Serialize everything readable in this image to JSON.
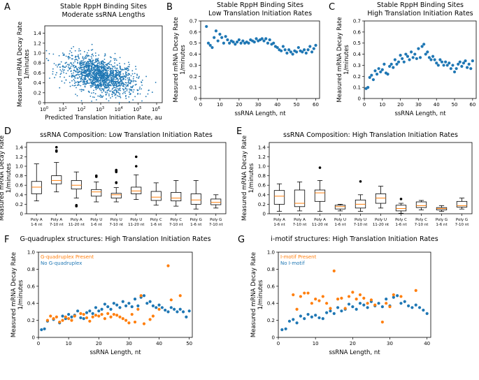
{
  "colors": {
    "blue": "#1f77b4",
    "orange": "#ff7f0e",
    "median": "#ff7f0e",
    "box": "#000000"
  },
  "chart_data": [
    {
      "id": "A",
      "panel_label": "A",
      "type": "scatter",
      "title": [
        "Stable RppH Binding Sites",
        "Moderate ssRNA Lengths"
      ],
      "xlabel": "Predicted Translation Initiation Rate, au",
      "ylabel": [
        "Measured mRNA Decay Rate",
        "1/minutes"
      ],
      "xscale": "log10",
      "xlim": [
        0,
        6.3
      ],
      "ylim": [
        0,
        1.55
      ],
      "x_ticks": [
        0,
        1,
        2,
        3,
        4,
        5,
        6
      ],
      "x_tick_labels": [
        "10^0",
        "10^1",
        "10^2",
        "10^3",
        "10^4",
        "10^5",
        "10^6"
      ],
      "y_ticks": [
        0,
        0.2,
        0.4,
        0.6,
        0.8,
        1.0,
        1.2,
        1.4
      ],
      "y_tick_labels": [
        "0",
        "0.2",
        "0.4",
        "0.6",
        "0.8",
        "1.0",
        "1.2",
        "1.4"
      ],
      "cloud": {
        "n": 1500,
        "center_log10_x": 2.95,
        "sd_log10_x": 0.95,
        "center_y": 0.55,
        "sd_y": 0.2,
        "correlation": -0.45
      }
    },
    {
      "id": "B",
      "panel_label": "B",
      "type": "scatter",
      "title": [
        "Stable RppH Binding Sites",
        "Low Translation Initiation Rates"
      ],
      "xlabel": "ssRNA Length, nt",
      "ylabel": [
        "Measured mRNA Decay Rate",
        "1/minutes"
      ],
      "xlim": [
        0,
        62
      ],
      "ylim": [
        0,
        0.7
      ],
      "x_ticks": [
        0,
        10,
        20,
        30,
        40,
        50,
        60
      ],
      "y_ticks": [
        0,
        0.1,
        0.2,
        0.3,
        0.4,
        0.5,
        0.6,
        0.7
      ],
      "x_tick_labels": [
        "0",
        "10",
        "20",
        "30",
        "40",
        "50",
        "60"
      ],
      "y_tick_labels": [
        "0",
        "0.1",
        "0.2",
        "0.3",
        "0.4",
        "0.5",
        "0.6",
        "0.7"
      ],
      "x": [
        3,
        4,
        5,
        6,
        7,
        8,
        9,
        10,
        11,
        12,
        13,
        14,
        15,
        16,
        17,
        18,
        19,
        20,
        21,
        22,
        23,
        24,
        25,
        26,
        27,
        28,
        29,
        30,
        31,
        32,
        33,
        34,
        35,
        36,
        37,
        38,
        39,
        40,
        41,
        42,
        43,
        44,
        45,
        46,
        47,
        48,
        49,
        50,
        51,
        52,
        53,
        54,
        55,
        56,
        57,
        58,
        59,
        60
      ],
      "y": [
        0.65,
        0.5,
        0.48,
        0.46,
        0.55,
        0.61,
        0.52,
        0.58,
        0.55,
        0.5,
        0.56,
        0.53,
        0.5,
        0.52,
        0.51,
        0.49,
        0.51,
        0.53,
        0.5,
        0.52,
        0.5,
        0.51,
        0.5,
        0.53,
        0.52,
        0.51,
        0.54,
        0.52,
        0.53,
        0.54,
        0.52,
        0.54,
        0.5,
        0.53,
        0.49,
        0.5,
        0.47,
        0.46,
        0.44,
        0.43,
        0.47,
        0.44,
        0.41,
        0.44,
        0.42,
        0.4,
        0.43,
        0.42,
        0.46,
        0.43,
        0.42,
        0.44,
        0.41,
        0.44,
        0.47,
        0.42,
        0.45,
        0.48
      ]
    },
    {
      "id": "C",
      "panel_label": "C",
      "type": "scatter",
      "title": [
        "Stable RppH Binding Sites",
        "High Translation Initiation Rates"
      ],
      "xlabel": "ssRNA Length, nt",
      "ylabel": [
        "Measured mRNA Decay Rate",
        "1/minutes"
      ],
      "xlim": [
        0,
        62
      ],
      "ylim": [
        0,
        0.7
      ],
      "x_ticks": [
        0,
        10,
        20,
        30,
        40,
        50,
        60
      ],
      "y_ticks": [
        0,
        0.1,
        0.2,
        0.3,
        0.4,
        0.5,
        0.6,
        0.7
      ],
      "x_tick_labels": [
        "0",
        "10",
        "20",
        "30",
        "40",
        "50",
        "60"
      ],
      "y_tick_labels": [
        "0",
        "0.1",
        "0.2",
        "0.3",
        "0.4",
        "0.5",
        "0.6",
        "0.7"
      ],
      "x": [
        1,
        2,
        3,
        4,
        5,
        6,
        7,
        8,
        9,
        10,
        11,
        12,
        13,
        14,
        15,
        16,
        17,
        18,
        19,
        20,
        21,
        22,
        23,
        24,
        25,
        26,
        27,
        28,
        29,
        30,
        31,
        32,
        33,
        34,
        35,
        36,
        37,
        38,
        39,
        40,
        41,
        42,
        43,
        44,
        45,
        46,
        47,
        48,
        49,
        50,
        51,
        52,
        53,
        54,
        55,
        56,
        57,
        58,
        59,
        60
      ],
      "y": [
        0.09,
        0.1,
        0.19,
        0.21,
        0.17,
        0.25,
        0.22,
        0.27,
        0.24,
        0.26,
        0.31,
        0.23,
        0.22,
        0.29,
        0.31,
        0.28,
        0.35,
        0.31,
        0.33,
        0.39,
        0.36,
        0.33,
        0.4,
        0.38,
        0.35,
        0.42,
        0.37,
        0.4,
        0.36,
        0.45,
        0.37,
        0.47,
        0.49,
        0.4,
        0.42,
        0.37,
        0.35,
        0.38,
        0.35,
        0.32,
        0.3,
        0.35,
        0.33,
        0.3,
        0.33,
        0.3,
        0.32,
        0.27,
        0.3,
        0.24,
        0.27,
        0.31,
        0.33,
        0.29,
        0.32,
        0.34,
        0.28,
        0.31,
        0.27,
        0.34
      ]
    },
    {
      "id": "D",
      "panel_label": "D",
      "type": "boxplot",
      "title": "ssRNA Composition: Low Translation Initiation Rates",
      "ylabel": [
        "Measured mRNA Decay Rate",
        "1/minutes"
      ],
      "ylim": [
        0,
        1.5
      ],
      "y_ticks": [
        0,
        0.2,
        0.4,
        0.6,
        0.8,
        1.0,
        1.2,
        1.4
      ],
      "y_tick_labels": [
        "0",
        "0.2",
        "0.4",
        "0.6",
        "0.8",
        "1.0",
        "1.2",
        "1.4"
      ],
      "categories": [
        [
          "Poly A",
          "1-6 nt"
        ],
        [
          "Poly A",
          "7-10 nt"
        ],
        [
          "Poly A",
          "11-20 nt"
        ],
        [
          "Poly U",
          "1-6 nt"
        ],
        [
          "Poly U",
          "7-10 nt"
        ],
        [
          "Poly U",
          "11-20 nt"
        ],
        [
          "Poly C",
          "1-6 nt"
        ],
        [
          "Poly C",
          "7-10 nt"
        ],
        [
          "Poly G",
          "1-6 nt"
        ],
        [
          "Poly G",
          "7-10 nt"
        ]
      ],
      "boxes": [
        {
          "whislo": 0.27,
          "q1": 0.42,
          "med": 0.56,
          "q3": 0.68,
          "whishi": 1.05,
          "fliers": []
        },
        {
          "whislo": 0.46,
          "q1": 0.63,
          "med": 0.7,
          "q3": 0.8,
          "whishi": 1.08,
          "fliers": [
            1.4,
            1.33,
            1.31
          ]
        },
        {
          "whislo": 0.33,
          "q1": 0.52,
          "med": 0.6,
          "q3": 0.7,
          "whishi": 0.88,
          "fliers": [
            0.18,
            0.16
          ]
        },
        {
          "whislo": 0.25,
          "q1": 0.37,
          "med": 0.46,
          "q3": 0.51,
          "whishi": 0.67,
          "fliers": [
            0.8,
            0.78
          ]
        },
        {
          "whislo": 0.25,
          "q1": 0.33,
          "med": 0.4,
          "q3": 0.43,
          "whishi": 0.55,
          "fliers": [
            0.92,
            0.9,
            0.88,
            0.66,
            0.65
          ]
        },
        {
          "whislo": 0.3,
          "q1": 0.42,
          "med": 0.48,
          "q3": 0.56,
          "whishi": 0.82,
          "fliers": [
            1.2,
            1.0
          ]
        },
        {
          "whislo": 0.18,
          "q1": 0.28,
          "med": 0.35,
          "q3": 0.47,
          "whishi": 0.65,
          "fliers": []
        },
        {
          "whislo": 0.16,
          "q1": 0.27,
          "med": 0.33,
          "q3": 0.45,
          "whishi": 0.7,
          "fliers": []
        },
        {
          "whislo": 0.1,
          "q1": 0.2,
          "med": 0.29,
          "q3": 0.42,
          "whishi": 0.7,
          "fliers": []
        },
        {
          "whislo": 0.12,
          "q1": 0.19,
          "med": 0.24,
          "q3": 0.31,
          "whishi": 0.4,
          "fliers": []
        }
      ]
    },
    {
      "id": "E",
      "panel_label": "E",
      "type": "boxplot",
      "title": "ssRNA Composition: High Translation Initiation Rates",
      "ylabel": [
        "Measured mRNA Decay Rate",
        "1/minutes"
      ],
      "ylim": [
        0,
        1.5
      ],
      "y_ticks": [
        0,
        0.2,
        0.4,
        0.6,
        0.8,
        1.0,
        1.2,
        1.4
      ],
      "y_tick_labels": [
        "0",
        "0.2",
        "0.4",
        "0.6",
        "0.8",
        "1.0",
        "1.2",
        "1.4"
      ],
      "categories": [
        [
          "Poly A",
          "1-6 nt"
        ],
        [
          "Poly A",
          "7-10 nt"
        ],
        [
          "Poly A",
          "11-20 nt"
        ],
        [
          "Poly U",
          "1-6 nt"
        ],
        [
          "Poly U",
          "7-10 nt"
        ],
        [
          "Poly U",
          "11-20 nt"
        ],
        [
          "Poly C",
          "1-6 nt"
        ],
        [
          "Poly C",
          "7-10 nt"
        ],
        [
          "Poly G",
          "1-6 nt"
        ],
        [
          "Poly G",
          "7-10 nt"
        ]
      ],
      "boxes": [
        {
          "whislo": 0.05,
          "q1": 0.2,
          "med": 0.37,
          "q3": 0.49,
          "whishi": 0.63,
          "fliers": []
        },
        {
          "whislo": 0.06,
          "q1": 0.15,
          "med": 0.22,
          "q3": 0.5,
          "whishi": 0.67,
          "fliers": []
        },
        {
          "whislo": 0.05,
          "q1": 0.26,
          "med": 0.44,
          "q3": 0.5,
          "whishi": 0.7,
          "fliers": [
            0.97
          ]
        },
        {
          "whislo": 0.06,
          "q1": 0.1,
          "med": 0.15,
          "q3": 0.18,
          "whishi": 0.2,
          "fliers": []
        },
        {
          "whislo": 0.05,
          "q1": 0.12,
          "med": 0.2,
          "q3": 0.29,
          "whishi": 0.4,
          "fliers": [
            0.68
          ]
        },
        {
          "whislo": 0.12,
          "q1": 0.22,
          "med": 0.33,
          "q3": 0.42,
          "whishi": 0.58,
          "fliers": []
        },
        {
          "whislo": 0.01,
          "q1": 0.06,
          "med": 0.11,
          "q3": 0.18,
          "whishi": 0.22,
          "fliers": [
            0.31
          ]
        },
        {
          "whislo": 0.08,
          "q1": 0.13,
          "med": 0.17,
          "q3": 0.25,
          "whishi": 0.28,
          "fliers": []
        },
        {
          "whislo": 0.05,
          "q1": 0.08,
          "med": 0.11,
          "q3": 0.13,
          "whishi": 0.17,
          "fliers": []
        },
        {
          "whislo": 0.1,
          "q1": 0.14,
          "med": 0.17,
          "q3": 0.26,
          "whishi": 0.33,
          "fliers": []
        }
      ]
    },
    {
      "id": "F",
      "panel_label": "F",
      "type": "scatter",
      "title": "G-quadruplex structures: High Translation Initiation Rates",
      "xlabel": "ssRNA Length, nt",
      "ylabel": [
        "Measured mRNA Decay Rate",
        "1/minutes"
      ],
      "xlim": [
        0,
        51
      ],
      "ylim": [
        0,
        1.0
      ],
      "x_ticks": [
        0,
        10,
        20,
        30,
        40,
        50
      ],
      "y_ticks": [
        0,
        0.2,
        0.4,
        0.6,
        0.8,
        1.0
      ],
      "x_tick_labels": [
        "0",
        "10",
        "20",
        "30",
        "40",
        "50"
      ],
      "y_tick_labels": [
        "0",
        "0.2",
        "0.4",
        "0.6",
        "0.8",
        "1.0"
      ],
      "legend": [
        "G-quadruplex Present",
        "No G-quadruplex"
      ],
      "series": [
        {
          "name": "G-quadruplex Present",
          "color": "orange",
          "x": [
            3,
            4,
            5,
            6,
            7,
            8,
            9,
            10,
            11,
            12,
            14,
            15,
            16,
            17,
            18,
            19,
            20,
            21,
            22,
            23,
            24,
            25,
            26,
            27,
            28,
            29,
            30,
            31,
            32,
            33,
            34,
            35,
            37,
            38,
            40,
            43,
            44,
            47
          ],
          "y": [
            0.2,
            0.25,
            0.22,
            0.24,
            0.18,
            0.2,
            0.24,
            0.22,
            0.2,
            0.25,
            0.28,
            0.27,
            0.23,
            0.19,
            0.24,
            0.26,
            0.25,
            0.27,
            0.22,
            0.28,
            0.24,
            0.27,
            0.26,
            0.24,
            0.22,
            0.2,
            0.17,
            0.27,
            0.18,
            0.33,
            0.49,
            0.16,
            0.21,
            0.25,
            0.33,
            0.84,
            0.44,
            0.49
          ]
        },
        {
          "name": "No G-quadruplex",
          "color": "blue",
          "x": [
            1,
            2,
            3,
            5,
            7,
            8,
            9,
            10,
            11,
            12,
            13,
            14,
            15,
            16,
            17,
            18,
            19,
            20,
            21,
            22,
            23,
            24,
            25,
            26,
            27,
            28,
            29,
            30,
            31,
            32,
            33,
            34,
            35,
            36,
            37,
            38,
            39,
            40,
            41,
            42,
            43,
            44,
            45,
            46,
            47,
            48,
            49,
            50
          ],
          "y": [
            0.09,
            0.1,
            0.19,
            0.21,
            0.17,
            0.25,
            0.22,
            0.27,
            0.24,
            0.26,
            0.31,
            0.23,
            0.22,
            0.29,
            0.31,
            0.28,
            0.35,
            0.31,
            0.33,
            0.39,
            0.36,
            0.33,
            0.4,
            0.38,
            0.35,
            0.42,
            0.37,
            0.4,
            0.36,
            0.45,
            0.37,
            0.47,
            0.49,
            0.4,
            0.42,
            0.37,
            0.35,
            0.38,
            0.35,
            0.32,
            0.3,
            0.35,
            0.33,
            0.3,
            0.33,
            0.3,
            0.24,
            0.31
          ]
        }
      ]
    },
    {
      "id": "G",
      "panel_label": "G",
      "type": "scatter",
      "title": "i-motif structures: High Translation Initiation Rates",
      "xlabel": "ssRNA Length, nt",
      "ylabel": [
        "Measured mRNA Decay Rate",
        "1/minutes"
      ],
      "xlim": [
        0,
        41
      ],
      "ylim": [
        0,
        1.0
      ],
      "x_ticks": [
        0,
        10,
        20,
        30,
        40
      ],
      "y_ticks": [
        0,
        0.2,
        0.4,
        0.6,
        0.8,
        1.0
      ],
      "x_tick_labels": [
        "0",
        "10",
        "20",
        "30",
        "40"
      ],
      "y_tick_labels": [
        "0",
        "0.2",
        "0.4",
        "0.6",
        "0.8",
        "1.0"
      ],
      "legend": [
        "I-motif Present",
        "No I-motif"
      ],
      "series": [
        {
          "name": "I-motif Present",
          "color": "orange",
          "x": [
            4,
            5,
            6,
            7,
            8,
            9,
            10,
            11,
            12,
            13,
            14,
            15,
            16,
            17,
            18,
            19,
            20,
            21,
            22,
            23,
            24,
            25,
            26,
            28,
            29,
            30,
            31,
            33,
            37
          ],
          "y": [
            0.5,
            0.33,
            0.48,
            0.52,
            0.52,
            0.4,
            0.45,
            0.43,
            0.48,
            0.4,
            0.34,
            0.78,
            0.45,
            0.46,
            0.34,
            0.48,
            0.53,
            0.45,
            0.5,
            0.46,
            0.4,
            0.44,
            0.38,
            0.18,
            0.4,
            0.36,
            0.5,
            0.48,
            0.55
          ]
        },
        {
          "name": "No I-motif",
          "color": "blue",
          "x": [
            1,
            2,
            3,
            4,
            5,
            6,
            7,
            8,
            9,
            10,
            11,
            12,
            13,
            14,
            15,
            16,
            17,
            18,
            19,
            20,
            21,
            22,
            23,
            24,
            25,
            26,
            27,
            28,
            29,
            30,
            31,
            32,
            33,
            34,
            35,
            36,
            37,
            38,
            39,
            40
          ],
          "y": [
            0.09,
            0.1,
            0.19,
            0.21,
            0.17,
            0.25,
            0.22,
            0.27,
            0.24,
            0.26,
            0.23,
            0.22,
            0.29,
            0.31,
            0.28,
            0.35,
            0.31,
            0.33,
            0.39,
            0.36,
            0.33,
            0.4,
            0.38,
            0.35,
            0.42,
            0.37,
            0.4,
            0.36,
            0.45,
            0.37,
            0.47,
            0.49,
            0.4,
            0.42,
            0.37,
            0.35,
            0.38,
            0.35,
            0.32,
            0.28
          ]
        }
      ]
    }
  ]
}
